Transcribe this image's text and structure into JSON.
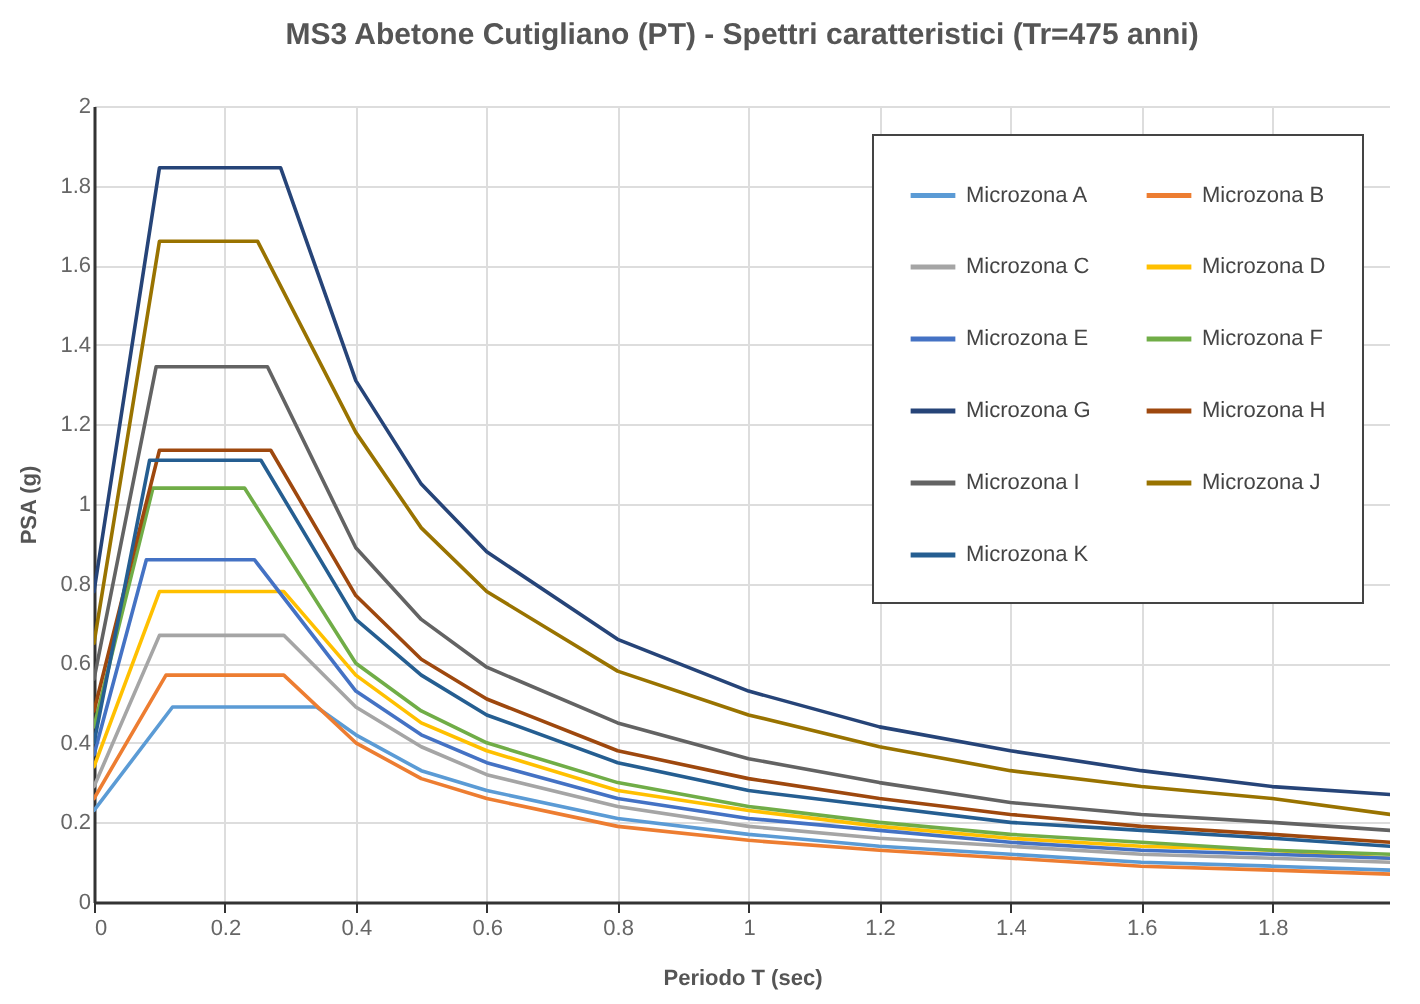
{
  "chart_data": {
    "type": "line",
    "title": "MS3 Abetone Cutigliano (PT) - Spettri caratteristici (Tr=475 anni)",
    "xlabel": "Periodo T (sec)",
    "ylabel": "PSA (g)",
    "xlim": [
      0,
      1.98
    ],
    "ylim": [
      0,
      2
    ],
    "xticks": [
      0,
      0.2,
      0.4,
      0.6,
      0.8,
      1,
      1.2,
      1.4,
      1.6,
      1.8
    ],
    "yticks": [
      0,
      0.2,
      0.4,
      0.6,
      0.8,
      1,
      1.2,
      1.4,
      1.6,
      1.8,
      2
    ],
    "grid": true,
    "legend": "top right",
    "line_style": "solid",
    "marker": "none",
    "series": [
      {
        "name": "Microzona A",
        "color": "#5b9bd5",
        "x": [
          0,
          0.12,
          0.34,
          0.4,
          0.5,
          0.6,
          0.8,
          1,
          1.2,
          1.4,
          1.6,
          1.8,
          1.98
        ],
        "values": [
          0.23,
          0.49,
          0.49,
          0.42,
          0.33,
          0.28,
          0.21,
          0.17,
          0.14,
          0.12,
          0.1,
          0.09,
          0.08
        ]
      },
      {
        "name": "Microzona B",
        "color": "#ed7d31",
        "x": [
          0,
          0.11,
          0.29,
          0.4,
          0.5,
          0.6,
          0.8,
          1,
          1.2,
          1.4,
          1.6,
          1.8,
          1.98
        ],
        "values": [
          0.26,
          0.57,
          0.57,
          0.4,
          0.31,
          0.26,
          0.19,
          0.155,
          0.13,
          0.11,
          0.09,
          0.08,
          0.07
        ]
      },
      {
        "name": "Microzona C",
        "color": "#a5a5a5",
        "x": [
          0,
          0.1,
          0.29,
          0.4,
          0.5,
          0.6,
          0.8,
          1,
          1.2,
          1.4,
          1.6,
          1.8,
          1.98
        ],
        "values": [
          0.29,
          0.67,
          0.67,
          0.49,
          0.39,
          0.32,
          0.24,
          0.19,
          0.16,
          0.14,
          0.12,
          0.11,
          0.1
        ]
      },
      {
        "name": "Microzona D",
        "color": "#ffc000",
        "x": [
          0,
          0.1,
          0.29,
          0.4,
          0.5,
          0.6,
          0.8,
          1,
          1.2,
          1.4,
          1.6,
          1.8,
          1.98
        ],
        "values": [
          0.34,
          0.78,
          0.78,
          0.57,
          0.45,
          0.38,
          0.28,
          0.23,
          0.19,
          0.16,
          0.14,
          0.13,
          0.11
        ]
      },
      {
        "name": "Microzona E",
        "color": "#4472c4",
        "x": [
          0,
          0.08,
          0.245,
          0.4,
          0.5,
          0.6,
          0.8,
          1,
          1.2,
          1.4,
          1.6,
          1.8,
          1.98
        ],
        "values": [
          0.37,
          0.86,
          0.86,
          0.53,
          0.42,
          0.35,
          0.26,
          0.21,
          0.18,
          0.15,
          0.13,
          0.12,
          0.11
        ]
      },
      {
        "name": "Microzona F",
        "color": "#70ad47",
        "x": [
          0,
          0.09,
          0.23,
          0.4,
          0.5,
          0.6,
          0.8,
          1,
          1.2,
          1.4,
          1.6,
          1.8,
          1.98
        ],
        "values": [
          0.44,
          1.04,
          1.04,
          0.6,
          0.48,
          0.4,
          0.3,
          0.24,
          0.2,
          0.17,
          0.15,
          0.13,
          0.12
        ]
      },
      {
        "name": "Microzona G",
        "color": "#264478",
        "x": [
          0,
          0.1,
          0.285,
          0.4,
          0.5,
          0.6,
          0.8,
          1,
          1.2,
          1.4,
          1.6,
          1.8,
          1.98
        ],
        "values": [
          0.78,
          1.845,
          1.845,
          1.31,
          1.05,
          0.88,
          0.66,
          0.53,
          0.44,
          0.38,
          0.33,
          0.29,
          0.27
        ]
      },
      {
        "name": "Microzona H",
        "color": "#9e480e",
        "x": [
          0,
          0.1,
          0.27,
          0.4,
          0.5,
          0.6,
          0.8,
          1,
          1.2,
          1.4,
          1.6,
          1.8,
          1.98
        ],
        "values": [
          0.48,
          1.135,
          1.135,
          0.77,
          0.61,
          0.51,
          0.38,
          0.31,
          0.26,
          0.22,
          0.19,
          0.17,
          0.15
        ]
      },
      {
        "name": "Microzona I",
        "color": "#636363",
        "x": [
          0,
          0.095,
          0.265,
          0.4,
          0.5,
          0.6,
          0.8,
          1,
          1.2,
          1.4,
          1.6,
          1.8,
          1.98
        ],
        "values": [
          0.56,
          1.345,
          1.345,
          0.89,
          0.71,
          0.59,
          0.45,
          0.36,
          0.3,
          0.25,
          0.22,
          0.2,
          0.18
        ]
      },
      {
        "name": "Microzona J",
        "color": "#997300",
        "x": [
          0,
          0.1,
          0.25,
          0.4,
          0.5,
          0.6,
          0.8,
          1,
          1.2,
          1.4,
          1.6,
          1.8,
          1.98
        ],
        "values": [
          0.65,
          1.66,
          1.66,
          1.18,
          0.94,
          0.78,
          0.58,
          0.47,
          0.39,
          0.33,
          0.29,
          0.26,
          0.22
        ]
      },
      {
        "name": "Microzona K",
        "color": "#255e91",
        "x": [
          0,
          0.085,
          0.255,
          0.4,
          0.5,
          0.6,
          0.8,
          1,
          1.2,
          1.4,
          1.6,
          1.8,
          1.98
        ],
        "values": [
          0.4,
          1.11,
          1.11,
          0.71,
          0.57,
          0.47,
          0.35,
          0.28,
          0.24,
          0.2,
          0.18,
          0.16,
          0.14
        ]
      }
    ]
  }
}
